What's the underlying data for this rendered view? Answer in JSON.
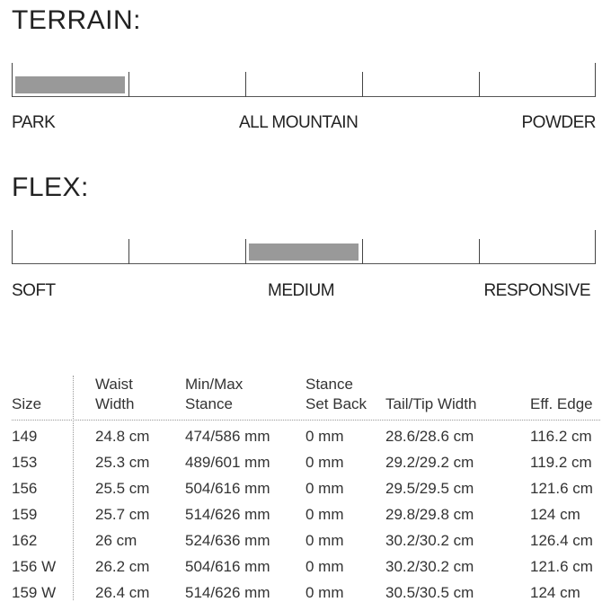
{
  "terrain": {
    "title": "TERRAIN:",
    "segments": 5,
    "selected_segment": 1,
    "labels": [
      "PARK",
      "ALL MOUNTAIN",
      "POWDER"
    ],
    "fill_color": "#999999"
  },
  "flex": {
    "title": "FLEX:",
    "segments": 5,
    "selected_segment": 3,
    "labels": [
      "SOFT",
      "MEDIUM",
      "RESPONSIVE"
    ],
    "fill_color": "#999999"
  },
  "table": {
    "headers": [
      [
        "",
        "Size"
      ],
      [
        "Waist",
        "Width"
      ],
      [
        "Min/Max",
        "Stance"
      ],
      [
        "Stance",
        "Set Back"
      ],
      [
        "",
        "Tail/Tip Width"
      ],
      [
        "",
        "Eff. Edge"
      ]
    ],
    "rows": [
      [
        "149",
        "24.8 cm",
        "474/586 mm",
        "0 mm",
        "28.6/28.6 cm",
        "116.2 cm"
      ],
      [
        "153",
        "25.3 cm",
        "489/601 mm",
        "0 mm",
        "29.2/29.2 cm",
        "119.2 cm"
      ],
      [
        "156",
        "25.5 cm",
        "504/616 mm",
        "0 mm",
        "29.5/29.5 cm",
        "121.6 cm"
      ],
      [
        "159",
        "25.7 cm",
        "514/626 mm",
        "0 mm",
        "29.8/29.8 cm",
        "124 cm"
      ],
      [
        "162",
        "26 cm",
        "524/636 mm",
        "0 mm",
        "30.2/30.2 cm",
        "126.4 cm"
      ],
      [
        "156 W",
        "26.2 cm",
        "504/616 mm",
        "0 mm",
        "30.2/30.2 cm",
        "121.6 cm"
      ],
      [
        "159 W",
        "26.4 cm",
        "514/626 mm",
        "0 mm",
        "30.5/30.5 cm",
        "124 cm"
      ]
    ]
  }
}
